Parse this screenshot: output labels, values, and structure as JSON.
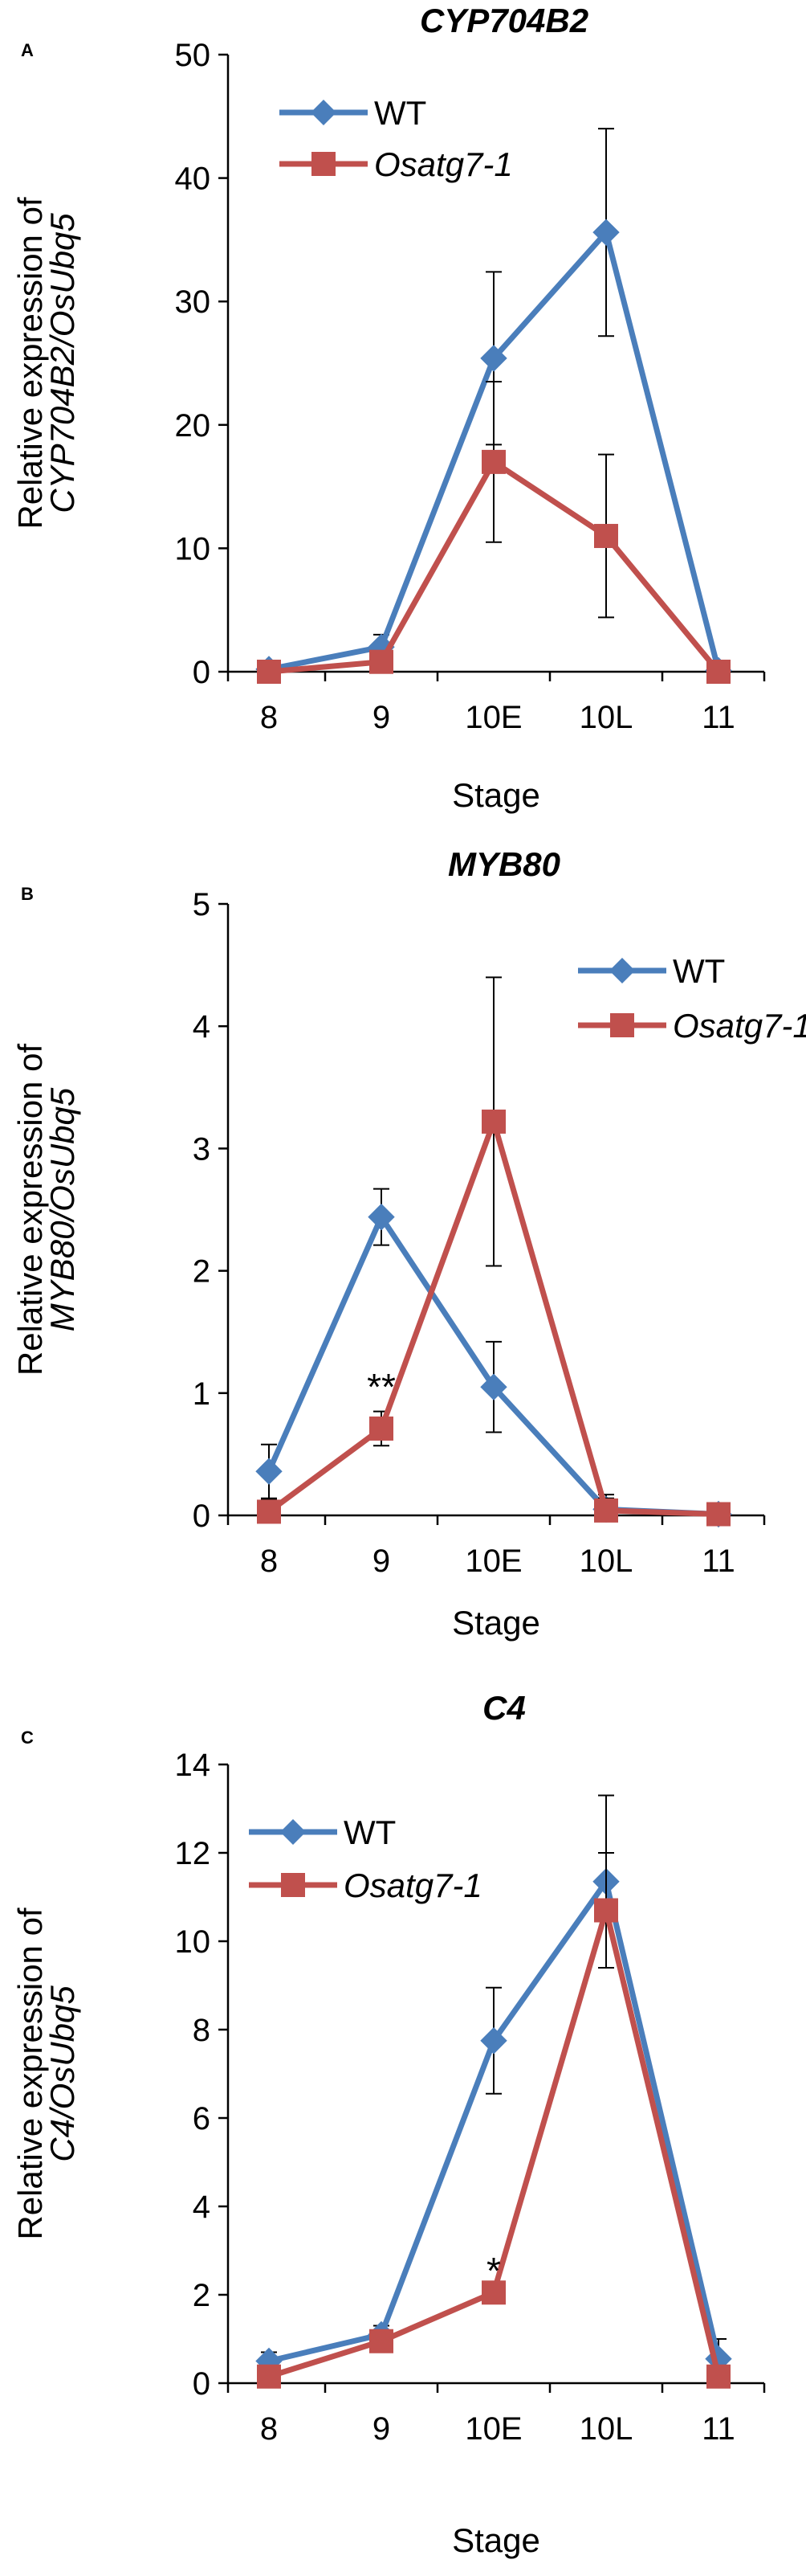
{
  "chart_data": [
    {
      "type": "line",
      "panel": "A",
      "title": "CYP704B2",
      "ylabel_line1": "Relative expression of",
      "ylabel_line2": "CYP704B2/OsUbq5",
      "xlabel": "Stage",
      "categories": [
        "8",
        "9",
        "10E",
        "10L",
        "11"
      ],
      "ylim": [
        0,
        50
      ],
      "yticks": [
        "0",
        "10",
        "20",
        "30",
        "40",
        "50"
      ],
      "legend_position": "top-left",
      "series": [
        {
          "name": "WT",
          "italic": false,
          "color": "#4a7ebb",
          "marker": "diamond",
          "values": [
            0.2,
            2.0,
            25.4,
            35.6,
            0.1
          ],
          "errors": [
            0.3,
            1.0,
            7.0,
            8.4,
            0.1
          ]
        },
        {
          "name": "Osatg7-1",
          "italic": true,
          "color": "#c0504d",
          "marker": "square",
          "values": [
            0.0,
            0.8,
            17.0,
            11.0,
            0.0
          ],
          "errors": [
            0.1,
            0.6,
            6.5,
            6.6,
            0.1
          ]
        }
      ],
      "annotations": []
    },
    {
      "type": "line",
      "panel": "B",
      "title": "MYB80",
      "ylabel_line1": "Relative expression of",
      "ylabel_line2": "MYB80/OsUbq5",
      "xlabel": "Stage",
      "categories": [
        "8",
        "9",
        "10E",
        "10L",
        "11"
      ],
      "ylim": [
        0,
        5
      ],
      "yticks": [
        "0",
        "1",
        "2",
        "3",
        "4",
        "5"
      ],
      "legend_position": "top-right",
      "series": [
        {
          "name": "WT",
          "italic": false,
          "color": "#4a7ebb",
          "marker": "diamond",
          "values": [
            0.36,
            2.44,
            1.05,
            0.05,
            0.01
          ],
          "errors": [
            0.22,
            0.23,
            0.37,
            0.12,
            0.01
          ]
        },
        {
          "name": "Osatg7-1",
          "italic": true,
          "color": "#c0504d",
          "marker": "square",
          "values": [
            0.03,
            0.71,
            3.22,
            0.04,
            0.01
          ],
          "errors": [
            0.1,
            0.14,
            1.18,
            0.1,
            0.01
          ]
        }
      ],
      "annotations": [
        {
          "text": "**",
          "category": "9",
          "value": 1.05
        }
      ]
    },
    {
      "type": "line",
      "panel": "C",
      "title": "C4",
      "ylabel_line1": "Relative expression of",
      "ylabel_line2": "C4/OsUbq5",
      "xlabel": "Stage",
      "categories": [
        "8",
        "9",
        "10E",
        "10L",
        "11"
      ],
      "ylim": [
        0,
        14
      ],
      "yticks": [
        "0",
        "2",
        "4",
        "6",
        "8",
        "10",
        "12",
        "14"
      ],
      "legend_position": "top-left",
      "series": [
        {
          "name": "WT",
          "italic": false,
          "color": "#4a7ebb",
          "marker": "diamond",
          "values": [
            0.5,
            1.1,
            7.75,
            11.35,
            0.55
          ],
          "errors": [
            0.2,
            0.2,
            1.2,
            1.95,
            0.45
          ]
        },
        {
          "name": "Osatg7-1",
          "italic": true,
          "color": "#c0504d",
          "marker": "square",
          "values": [
            0.15,
            0.95,
            2.05,
            10.7,
            0.15
          ],
          "errors": [
            0.1,
            0.15,
            0.15,
            1.3,
            0.1
          ]
        }
      ],
      "annotations": [
        {
          "text": "*",
          "category": "10E",
          "value": 2.55
        }
      ]
    }
  ]
}
